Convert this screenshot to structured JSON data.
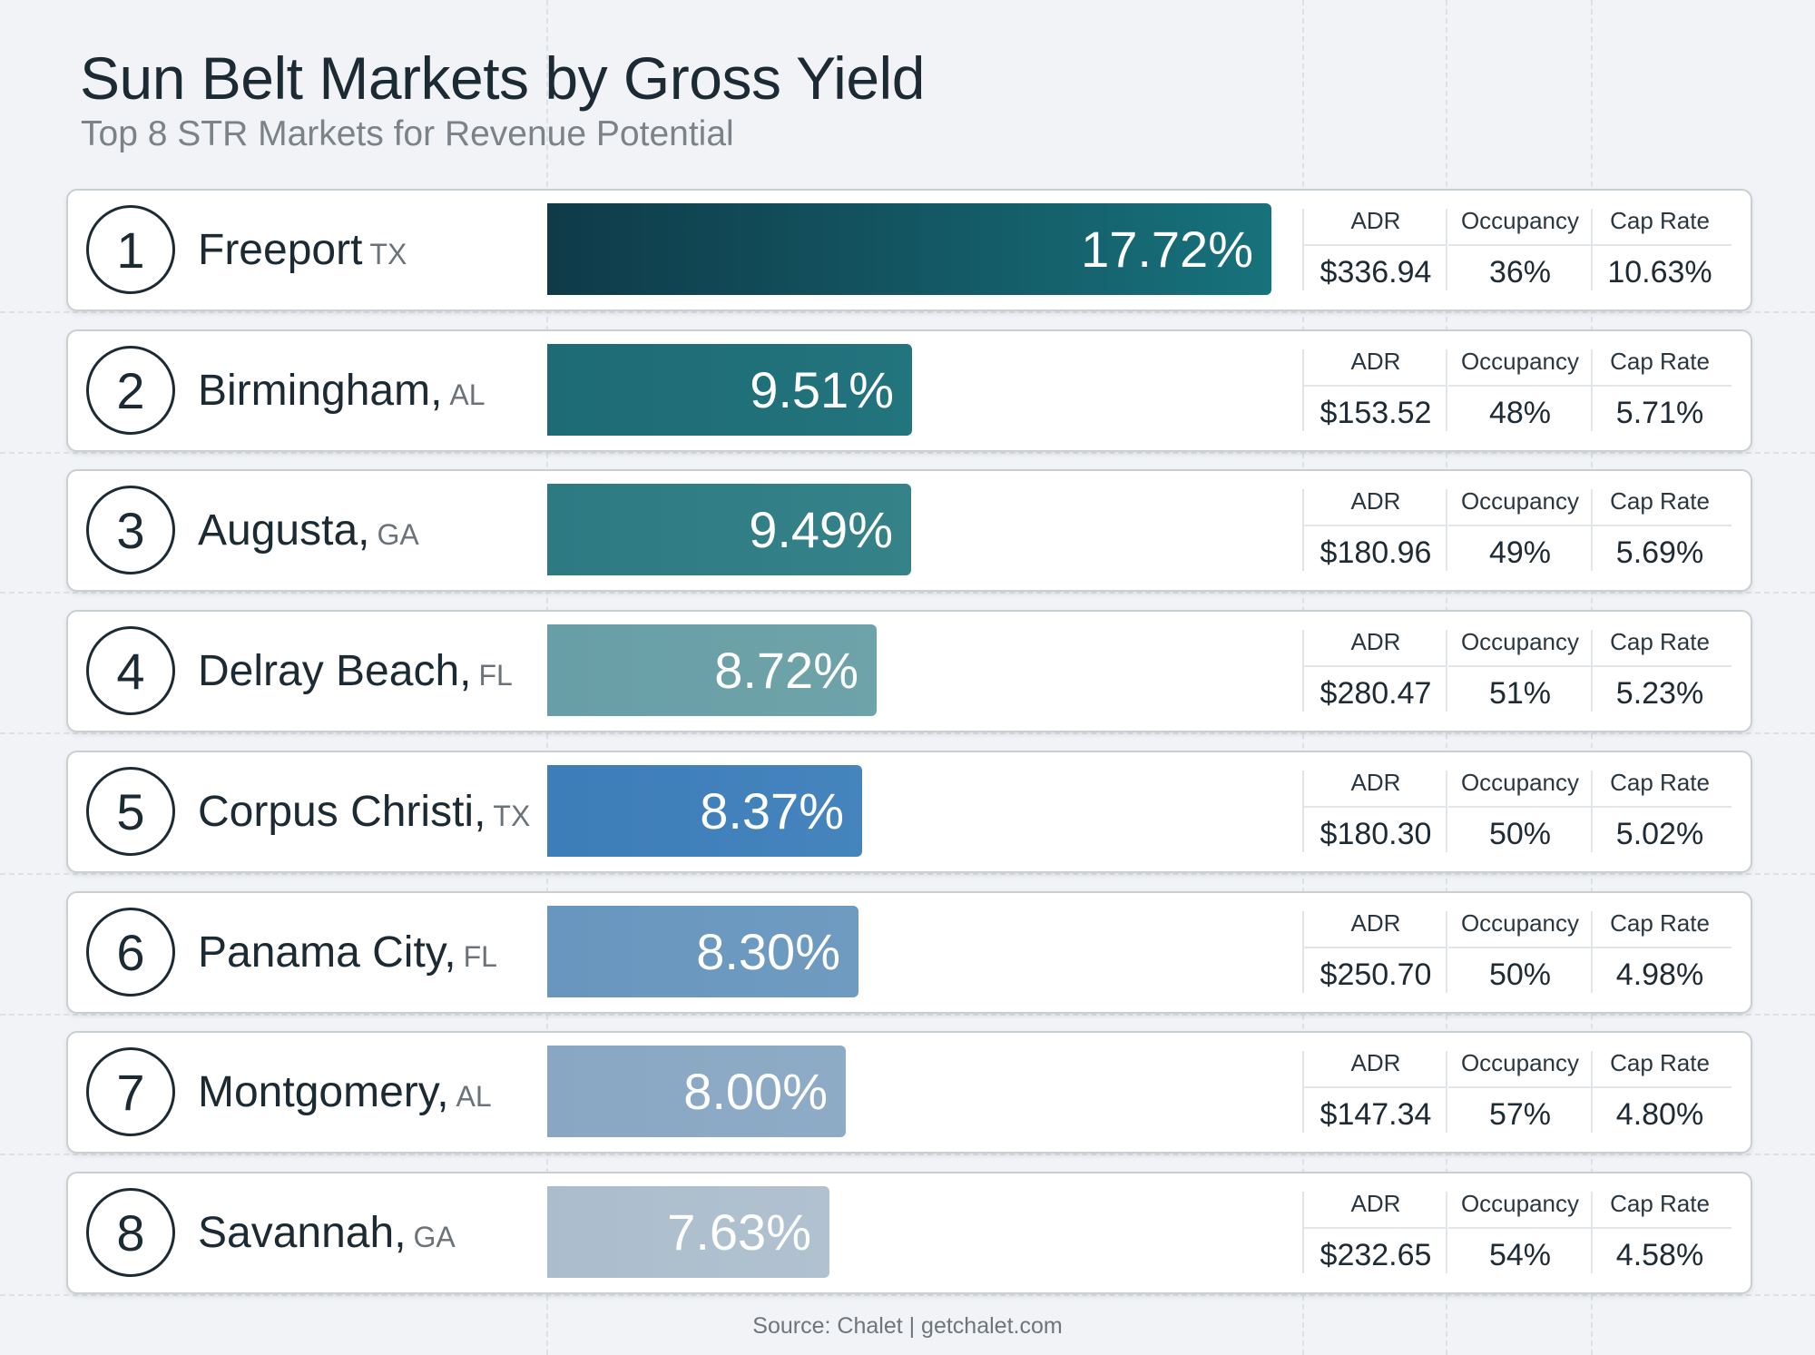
{
  "title": "Sun Belt Markets by Gross Yield",
  "subtitle": "Top 8 STR Markets for Revenue Potential",
  "source": "Source: Chalet | getchalet.com",
  "metric_headers": {
    "adr": "ADR",
    "occupancy": "Occupancy",
    "cap_rate": "Cap Rate"
  },
  "chart_data": {
    "type": "bar",
    "orientation": "horizontal",
    "title": "Sun Belt Markets by Gross Yield",
    "subtitle": "Top 8 STR Markets for Revenue Potential",
    "categories": [
      "Freeport",
      "Birmingham",
      "Augusta",
      "Delray Beach",
      "Corpus Christi",
      "Panama City",
      "Montgomery",
      "Savannah"
    ],
    "values": [
      17.72,
      9.51,
      9.49,
      8.72,
      8.37,
      8.3,
      8.0,
      7.63
    ],
    "rows": [
      {
        "rank": "1",
        "city": "Freeport",
        "state": "TX",
        "yield": "17.72%",
        "value": 17.72,
        "adr": "$336.94",
        "occupancy": "36%",
        "cap_rate": "10.63%",
        "color": "#13535f",
        "color2": "#17727c"
      },
      {
        "rank": "2",
        "city": "Birmingham,",
        "state": "AL",
        "yield": "9.51%",
        "value": 9.51,
        "adr": "$153.52",
        "occupancy": "48%",
        "cap_rate": "5.71%",
        "color": "#1e6b75",
        "color2": "#22747d"
      },
      {
        "rank": "3",
        "city": "Augusta,",
        "state": "GA",
        "yield": "9.49%",
        "value": 9.49,
        "adr": "$180.96",
        "occupancy": "49%",
        "cap_rate": "5.69%",
        "color": "#2e7a83",
        "color2": "#358289"
      },
      {
        "rank": "4",
        "city": "Delray Beach,",
        "state": "FL",
        "yield": "8.72%",
        "value": 8.72,
        "adr": "$280.47",
        "occupancy": "51%",
        "cap_rate": "5.23%",
        "color": "#689ea6",
        "color2": "#6fa3aa"
      },
      {
        "rank": "5",
        "city": "Corpus Christi,",
        "state": "TX",
        "yield": "8.37%",
        "value": 8.37,
        "adr": "$180.30",
        "occupancy": "50%",
        "cap_rate": "5.02%",
        "color": "#3d7db8",
        "color2": "#4584bd"
      },
      {
        "rank": "6",
        "city": "Panama City,",
        "state": "FL",
        "yield": "8.30%",
        "value": 8.3,
        "adr": "$250.70",
        "occupancy": "50%",
        "cap_rate": "4.98%",
        "color": "#6896be",
        "color2": "#6f9bc1"
      },
      {
        "rank": "7",
        "city": "Montgomery,",
        "state": "AL",
        "yield": "8.00%",
        "value": 8.0,
        "adr": "$147.34",
        "occupancy": "57%",
        "cap_rate": "4.80%",
        "color": "#89a7c3",
        "color2": "#8eabc6"
      },
      {
        "rank": "8",
        "city": "Savannah,",
        "state": "GA",
        "yield": "7.63%",
        "value": 7.63,
        "adr": "$232.65",
        "occupancy": "54%",
        "cap_rate": "4.58%",
        "color": "#abbdcd",
        "color2": "#b1c1d0"
      }
    ],
    "grid": false,
    "legend": "none"
  }
}
